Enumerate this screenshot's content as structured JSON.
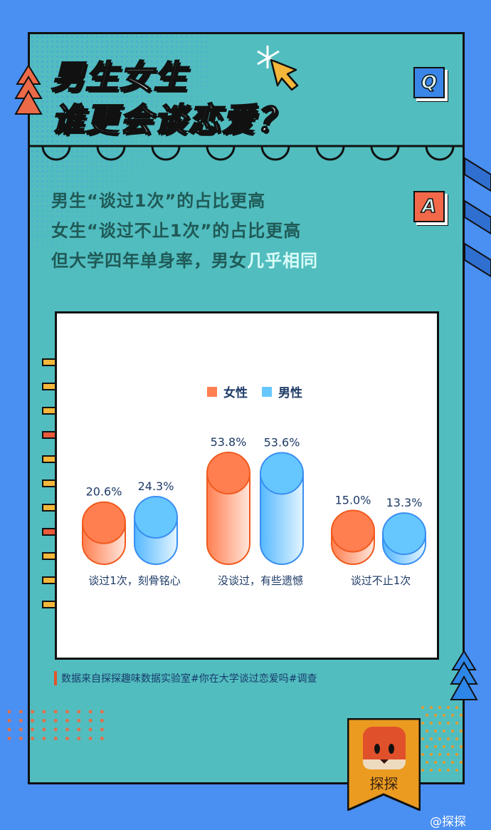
{
  "title": {
    "line1": "男生女生",
    "line2": "谁更会谈恋爱？"
  },
  "q_badge": "Q",
  "a_badge": "A",
  "answer": {
    "line1": "男生“谈过1次”的占比更高",
    "line2": "女生“谈过不止1次”的占比更高",
    "line3_prefix": "但大学四年单身率，男女",
    "line3_highlight": "几乎相同"
  },
  "colors": {
    "female": "#ff7f50",
    "male": "#66c7ff",
    "background": "#4a8ff2",
    "panel": "#52bdbf"
  },
  "chart_data": {
    "type": "bar",
    "categories": [
      "谈过1次，刻骨铭心",
      "没谈过，有些遗憾",
      "谈过不止1次"
    ],
    "series": [
      {
        "name": "女性",
        "values": [
          20.6,
          53.8,
          15.0
        ],
        "labels": [
          "20.6%",
          "53.8%",
          "15.0%"
        ]
      },
      {
        "name": "男性",
        "values": [
          24.3,
          53.6,
          13.3
        ],
        "labels": [
          "24.3%",
          "53.6%",
          "13.3%"
        ]
      }
    ],
    "unit": "%",
    "legend_position": "top-center",
    "grid": false
  },
  "source": "数据来自探探趣味数据实验室#你在大学谈过恋爱吗#调查",
  "brand": {
    "name": "探探",
    "weibo": "@探探"
  }
}
